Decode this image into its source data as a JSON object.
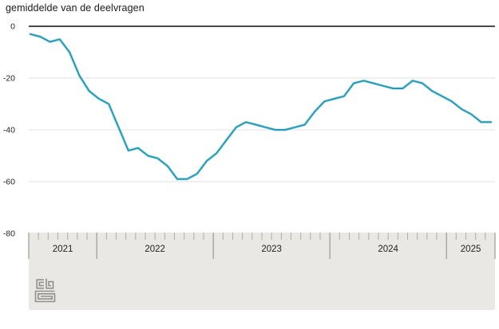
{
  "header": {
    "title": "gemiddelde van de deelvragen"
  },
  "colors": {
    "line": "#2399b4",
    "line_halo": "rgba(139,204,216,0.45)",
    "zero_axis": "#4a4a4a",
    "gridline": "#e2e2e2",
    "axis_band_bg": "#e9e8e5",
    "tick_minor": "#aeada9",
    "tick_major": "#8b8a86",
    "label_text": "#1f1f1f",
    "logo_gray": "#908f8b"
  },
  "chart_data": {
    "type": "line",
    "title": "gemiddelde van de deelvragen",
    "xlabel": "",
    "ylabel": "",
    "ylim": [
      -80,
      0
    ],
    "yticks": [
      0,
      -20,
      -40,
      -60,
      -80
    ],
    "grid": true,
    "legend": "none",
    "year_labels": [
      "2021",
      "2022",
      "2023",
      "2024",
      "2025"
    ],
    "x": [
      "2021-06",
      "2021-07",
      "2021-08",
      "2021-09",
      "2021-10",
      "2021-11",
      "2021-12",
      "2022-01",
      "2022-02",
      "2022-03",
      "2022-04",
      "2022-05",
      "2022-06",
      "2022-07",
      "2022-08",
      "2022-09",
      "2022-10",
      "2022-11",
      "2022-12",
      "2023-01",
      "2023-02",
      "2023-03",
      "2023-04",
      "2023-05",
      "2023-06",
      "2023-07",
      "2023-08",
      "2023-09",
      "2023-10",
      "2023-11",
      "2023-12",
      "2024-01",
      "2024-02",
      "2024-03",
      "2024-04",
      "2024-05",
      "2024-06",
      "2024-07",
      "2024-08",
      "2024-09",
      "2024-10",
      "2024-11",
      "2024-12",
      "2025-01",
      "2025-02",
      "2025-03",
      "2025-04",
      "2025-05"
    ],
    "values": [
      -3,
      -4,
      -6,
      -5,
      -10,
      -19,
      -25,
      -28,
      -30,
      -39,
      -48,
      -47,
      -50,
      -51,
      -54,
      -59,
      -59,
      -57,
      -52,
      -49,
      -44,
      -39,
      -37,
      -38,
      -39,
      -40,
      -40,
      -39,
      -38,
      -33,
      -29,
      -28,
      -27,
      -22,
      -21,
      -22,
      -23,
      -24,
      -24,
      -21,
      -22,
      -25,
      -27,
      -29,
      -32,
      -34,
      -37,
      -37
    ]
  }
}
